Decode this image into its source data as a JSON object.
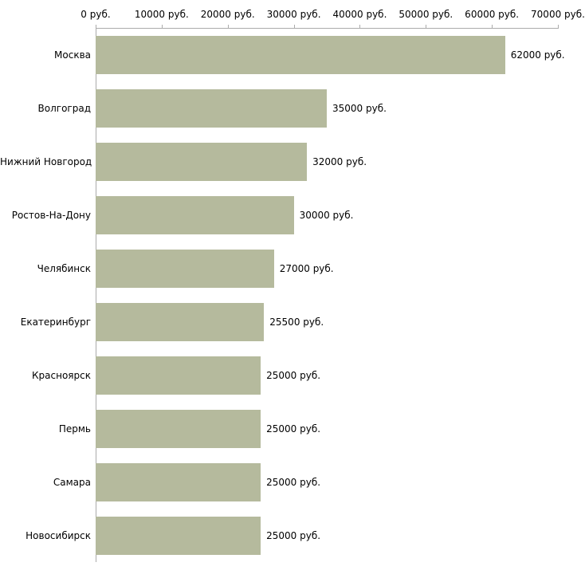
{
  "chart_data": {
    "type": "bar",
    "orientation": "horizontal",
    "title": "",
    "xlabel": "",
    "ylabel": "",
    "xlim": [
      0,
      70000
    ],
    "grid": false,
    "axis_position": "top",
    "bar_color": "#b5ba9d",
    "axis_line_color": "#ababab",
    "x_ticks": [
      "0 руб.",
      "10000 руб.",
      "20000 руб.",
      "30000 руб.",
      "40000 руб.",
      "50000 руб.",
      "60000 руб.",
      "70000 руб."
    ],
    "x_tick_values": [
      0,
      10000,
      20000,
      30000,
      40000,
      50000,
      60000,
      70000
    ],
    "categories": [
      "Москва",
      "Волгоград",
      "Нижний Новгород",
      "Ростов-На-Дону",
      "Челябинск",
      "Екатеринбург",
      "Красноярск",
      "Пермь",
      "Самара",
      "Новосибирск"
    ],
    "values": [
      62000,
      35000,
      32000,
      30000,
      27000,
      25500,
      25000,
      25000,
      25000,
      25000
    ],
    "value_labels": [
      "62000 руб.",
      "35000 руб.",
      "32000 руб.",
      "30000 руб.",
      "27000 руб.",
      "25500 руб.",
      "25000 руб.",
      "25000 руб.",
      "25000 руб.",
      "25000 руб."
    ]
  }
}
